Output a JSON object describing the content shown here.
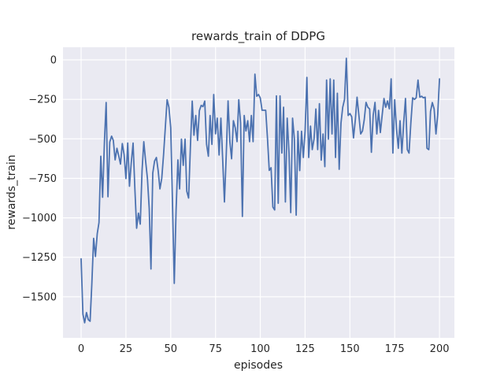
{
  "figure": {
    "title": "rewards_train of DDPG",
    "xlabel": "episodes",
    "ylabel": "rewards_train"
  },
  "colors": {
    "line": "#4c72b0",
    "axes_bg": "#eaeaf2",
    "grid": "#ffffff",
    "figure_bg": "#ffffff",
    "text": "#262626"
  },
  "chart_data": {
    "type": "line",
    "title": "rewards_train of DDPG",
    "xlabel": "episodes",
    "ylabel": "rewards_train",
    "grid": true,
    "legend": false,
    "xlim": [
      -10.1,
      208.3
    ],
    "ylim": [
      -1760,
      80
    ],
    "x_ticks": [
      0,
      25,
      50,
      75,
      100,
      125,
      150,
      175,
      200
    ],
    "x_tick_labels": [
      "0",
      "25",
      "50",
      "75",
      "100",
      "125",
      "150",
      "175",
      "200"
    ],
    "y_ticks": [
      0,
      -250,
      -500,
      -750,
      -1000,
      -1250,
      -1500
    ],
    "y_tick_labels": [
      "0",
      "−250",
      "−500",
      "−750",
      "−1000",
      "−1250",
      "−1500"
    ],
    "x_start": 0,
    "x_step": 1,
    "series": [
      {
        "name": "rewards_train",
        "color": "#4c72b0",
        "values": [
          -1260,
          -1610,
          -1665,
          -1600,
          -1645,
          -1655,
          -1420,
          -1130,
          -1245,
          -1100,
          -1030,
          -610,
          -870,
          -520,
          -270,
          -867,
          -520,
          -483,
          -510,
          -633,
          -560,
          -608,
          -660,
          -530,
          -600,
          -751,
          -527,
          -800,
          -650,
          -527,
          -820,
          -1066,
          -970,
          -1040,
          -700,
          -518,
          -640,
          -750,
          -942,
          -1324,
          -717,
          -640,
          -618,
          -700,
          -817,
          -750,
          -600,
          -430,
          -252,
          -300,
          -430,
          -900,
          -1415,
          -950,
          -633,
          -817,
          -502,
          -668,
          -502,
          -832,
          -875,
          -550,
          -261,
          -477,
          -352,
          -510,
          -321,
          -288,
          -296,
          -261,
          -535,
          -610,
          -352,
          -535,
          -219,
          -468,
          -369,
          -602,
          -369,
          -635,
          -900,
          -600,
          -260,
          -518,
          -626,
          -385,
          -430,
          -518,
          -252,
          -400,
          -991,
          -352,
          -450,
          -385,
          -518,
          -352,
          -518,
          -90,
          -230,
          -219,
          -241,
          -319,
          -319,
          -319,
          -500,
          -700,
          -683,
          -932,
          -950,
          -228,
          -908,
          -228,
          -590,
          -300,
          -900,
          -369,
          -590,
          -967,
          -369,
          -500,
          -983,
          -452,
          -701,
          -452,
          -618,
          -452,
          -111,
          -618,
          -419,
          -568,
          -500,
          -311,
          -568,
          -277,
          -635,
          -469,
          -676,
          -128,
          -502,
          -120,
          -469,
          -128,
          -618,
          -211,
          -693,
          -400,
          -300,
          -250,
          10,
          -352,
          -340,
          -360,
          -494,
          -380,
          -236,
          -350,
          -469,
          -450,
          -380,
          -269,
          -300,
          -311,
          -585,
          -350,
          -269,
          -469,
          -320,
          -460,
          -350,
          -244,
          -300,
          -260,
          -310,
          -120,
          -590,
          -252,
          -435,
          -560,
          -385,
          -590,
          -400,
          -244,
          -568,
          -590,
          -400,
          -240,
          -250,
          -240,
          -128,
          -236,
          -230,
          -240,
          -236,
          -560,
          -568,
          -327,
          -270,
          -311,
          -469,
          -350,
          -120
        ]
      }
    ]
  }
}
